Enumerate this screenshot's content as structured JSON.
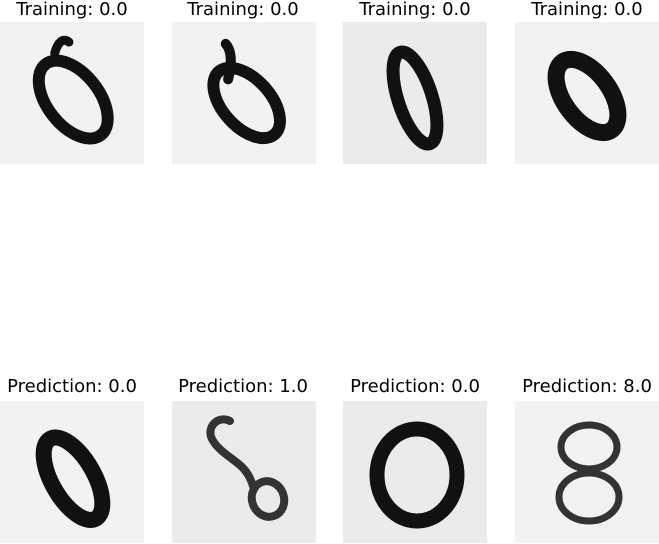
{
  "figure": {
    "training": [
      {
        "title": "Training: 0.0",
        "label": 0.0,
        "digit": "0"
      },
      {
        "title": "Training: 0.0",
        "label": 0.0,
        "digit": "0"
      },
      {
        "title": "Training: 0.0",
        "label": 0.0,
        "digit": "0"
      },
      {
        "title": "Training: 0.0",
        "label": 0.0,
        "digit": "0"
      }
    ],
    "prediction": [
      {
        "title": "Prediction: 0.0",
        "label": 0.0,
        "digit": "0"
      },
      {
        "title": "Prediction: 1.0",
        "label": 1.0,
        "digit": "6"
      },
      {
        "title": "Prediction: 0.0",
        "label": 0.0,
        "digit": "0"
      },
      {
        "title": "Prediction: 8.0",
        "label": 8.0,
        "digit": "8"
      }
    ],
    "colors": {
      "ink": "#111111",
      "panel_background": "#f2f2f2",
      "panel_background_alt": "#ebebeb"
    }
  }
}
